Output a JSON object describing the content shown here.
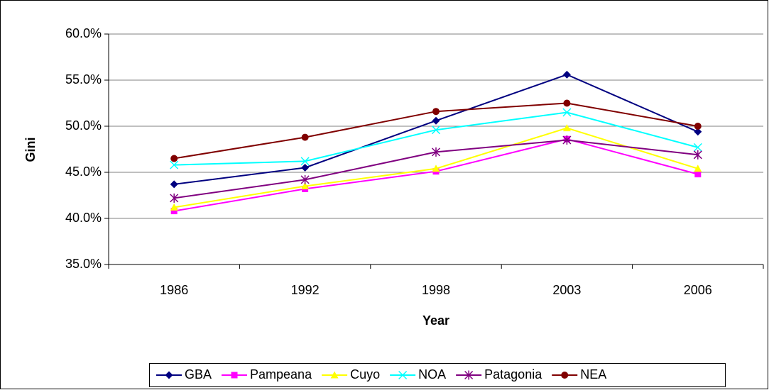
{
  "chart_data": {
    "type": "line",
    "x_label": "Year",
    "y_label": "Gini",
    "categories": [
      "1986",
      "1992",
      "1998",
      "2003",
      "2006"
    ],
    "ylim": [
      35,
      60
    ],
    "yticks": [
      {
        "value": 35,
        "label": "35.0%"
      },
      {
        "value": 40,
        "label": "40.0%"
      },
      {
        "value": 45,
        "label": "45.0%"
      },
      {
        "value": 50,
        "label": "50.0%"
      },
      {
        "value": 55,
        "label": "55.0%"
      },
      {
        "value": 60,
        "label": "60.0%"
      }
    ],
    "grid": true,
    "legend": "bottom",
    "series": [
      {
        "name": "GBA",
        "color": "#000080",
        "marker": "diamond",
        "values": [
          43.7,
          45.5,
          50.6,
          55.6,
          49.4
        ]
      },
      {
        "name": "Pampeana",
        "color": "#ff00ff",
        "marker": "square",
        "values": [
          40.8,
          43.2,
          45.1,
          48.6,
          44.8
        ]
      },
      {
        "name": "Cuyo",
        "color": "#ffff00",
        "marker": "triangle",
        "values": [
          41.2,
          43.5,
          45.4,
          49.8,
          45.4
        ]
      },
      {
        "name": "NOA",
        "color": "#00ffff",
        "marker": "x",
        "values": [
          45.8,
          46.2,
          49.6,
          51.5,
          47.7
        ]
      },
      {
        "name": "Patagonia",
        "color": "#800080",
        "marker": "star",
        "values": [
          42.2,
          44.2,
          47.2,
          48.5,
          46.9
        ]
      },
      {
        "name": "NEA",
        "color": "#800000",
        "marker": "circle",
        "values": [
          46.5,
          48.8,
          51.6,
          52.5,
          50.0
        ]
      }
    ]
  }
}
